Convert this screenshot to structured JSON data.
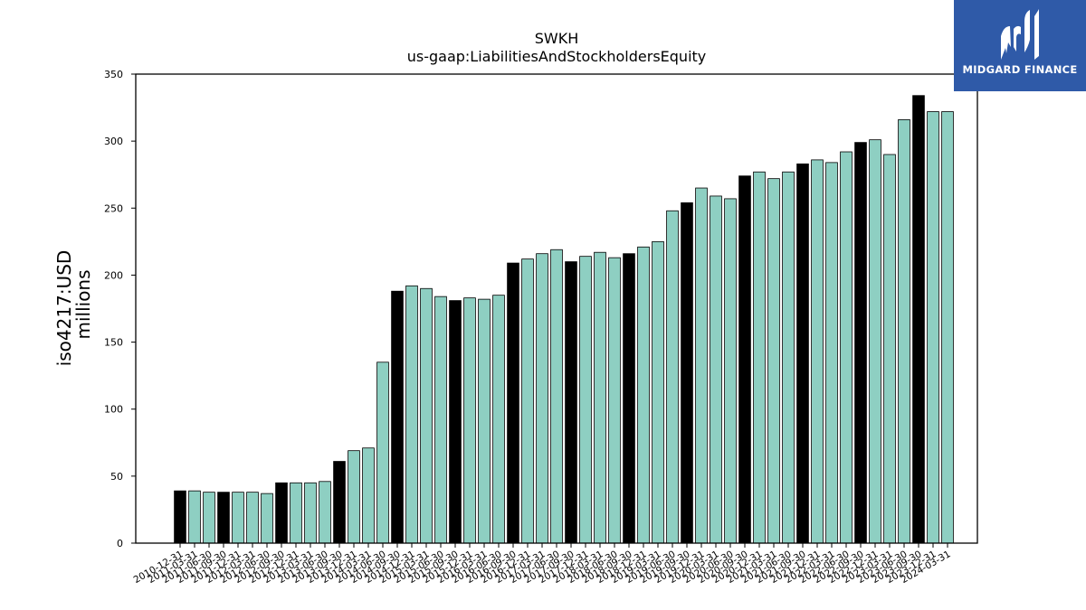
{
  "chart_data": {
    "type": "bar",
    "title": "SWKH",
    "subtitle": "us-gaap:LiabilitiesAndStockholdersEquity",
    "ylabel": "iso4217:USD",
    "ylabel_unit": "millions",
    "xlabel": "",
    "ylim": [
      0,
      350
    ],
    "yticks": [
      0,
      50,
      100,
      150,
      200,
      250,
      300,
      350
    ],
    "grid": false,
    "colors": {
      "annual": "#000000",
      "quarterly": "#8ecfc2",
      "edge": "#000000"
    },
    "categories": [
      "2010-12-31",
      "2011-03-31",
      "2011-06-30",
      "2011-09-30",
      "2011-12-31",
      "2012-03-31",
      "2012-06-30",
      "2012-09-30",
      "2012-12-31",
      "2013-03-31",
      "2013-06-30",
      "2013-09-30",
      "2013-12-31",
      "2014-03-31",
      "2014-06-30",
      "2014-09-30",
      "2014-12-31",
      "2015-03-31",
      "2015-06-30",
      "2015-09-30",
      "2015-12-31",
      "2016-03-31",
      "2016-06-30",
      "2016-09-30",
      "2016-12-31",
      "2017-03-31",
      "2017-06-30",
      "2017-09-30",
      "2017-12-31",
      "2018-03-31",
      "2018-06-30",
      "2018-09-30",
      "2018-12-31",
      "2019-03-31",
      "2019-06-30",
      "2019-09-30",
      "2019-12-31",
      "2020-03-31",
      "2020-06-30",
      "2020-09-30",
      "2020-12-31",
      "2021-03-31",
      "2021-06-30",
      "2021-09-30",
      "2021-12-31",
      "2022-03-31",
      "2022-06-30",
      "2022-09-30",
      "2022-12-31",
      "2023-03-31",
      "2023-06-30",
      "2023-09-30",
      "2023-12-31",
      "2024-03-31"
    ],
    "values": [
      39,
      39,
      38,
      38,
      38,
      38,
      37,
      45,
      45,
      45,
      46,
      61,
      69,
      71,
      135,
      188,
      192,
      190,
      184,
      181,
      183,
      182,
      185,
      209,
      212,
      216,
      219,
      210,
      214,
      217,
      213,
      216,
      221,
      225,
      248,
      254,
      265,
      259,
      257,
      274,
      277,
      272,
      277,
      283,
      286,
      284,
      292,
      299,
      301,
      290,
      316,
      334,
      322,
      322
    ],
    "annual": [
      true,
      false,
      false,
      true,
      false,
      false,
      false,
      true,
      false,
      false,
      false,
      true,
      false,
      false,
      false,
      true,
      false,
      false,
      false,
      true,
      false,
      false,
      false,
      true,
      false,
      false,
      false,
      true,
      false,
      false,
      false,
      true,
      false,
      false,
      false,
      true,
      false,
      false,
      false,
      true,
      false,
      false,
      false,
      true,
      false,
      false,
      false,
      true,
      false,
      false,
      false,
      true,
      false,
      false
    ]
  },
  "logo": {
    "text": "MIDGARD FINANCE",
    "icon": "midgard-logo-icon",
    "background": "#2f5aa8"
  }
}
